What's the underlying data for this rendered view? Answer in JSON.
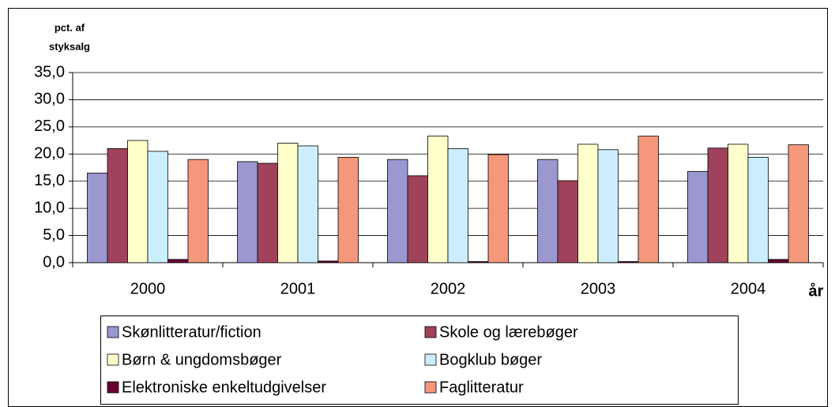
{
  "chart_data": {
    "type": "bar",
    "y_label": [
      "pct. af",
      "styksalg"
    ],
    "x_label": "år",
    "categories": [
      "2000",
      "2001",
      "2002",
      "2003",
      "2004"
    ],
    "series": [
      {
        "name": "Skønlitteratur/fiction",
        "color": "#9b97cf",
        "values": [
          16.5,
          18.6,
          19.0,
          19.0,
          16.8
        ]
      },
      {
        "name": "Skole og lærebøger",
        "color": "#a0425c",
        "values": [
          21.0,
          18.3,
          16.0,
          15.1,
          21.1
        ]
      },
      {
        "name": "Børn & ungdomsbøger",
        "color": "#ffffcc",
        "values": [
          22.5,
          22.0,
          23.3,
          21.8,
          21.8
        ]
      },
      {
        "name": "Bogklub bøger",
        "color": "#ccefff",
        "values": [
          20.5,
          21.5,
          21.0,
          20.8,
          19.4
        ]
      },
      {
        "name": "Elektroniske enkeltudgivelser",
        "color": "#660033",
        "values": [
          0.6,
          0.3,
          0.2,
          0.2,
          0.6
        ]
      },
      {
        "name": "Faglitteratur",
        "color": "#f4977a",
        "values": [
          19.0,
          19.4,
          19.9,
          23.3,
          21.7
        ]
      }
    ],
    "ylim": [
      0,
      35
    ],
    "yticks": [
      {
        "value": 0,
        "label": "0,0"
      },
      {
        "value": 5,
        "label": "5,0"
      },
      {
        "value": 10,
        "label": "10,0"
      },
      {
        "value": 15,
        "label": "15,0"
      },
      {
        "value": 20,
        "label": "20,0"
      },
      {
        "value": 25,
        "label": "25,0"
      },
      {
        "value": 30,
        "label": "30,0"
      },
      {
        "value": 35,
        "label": "35,0"
      }
    ],
    "grid": true,
    "legend": "bottom"
  }
}
